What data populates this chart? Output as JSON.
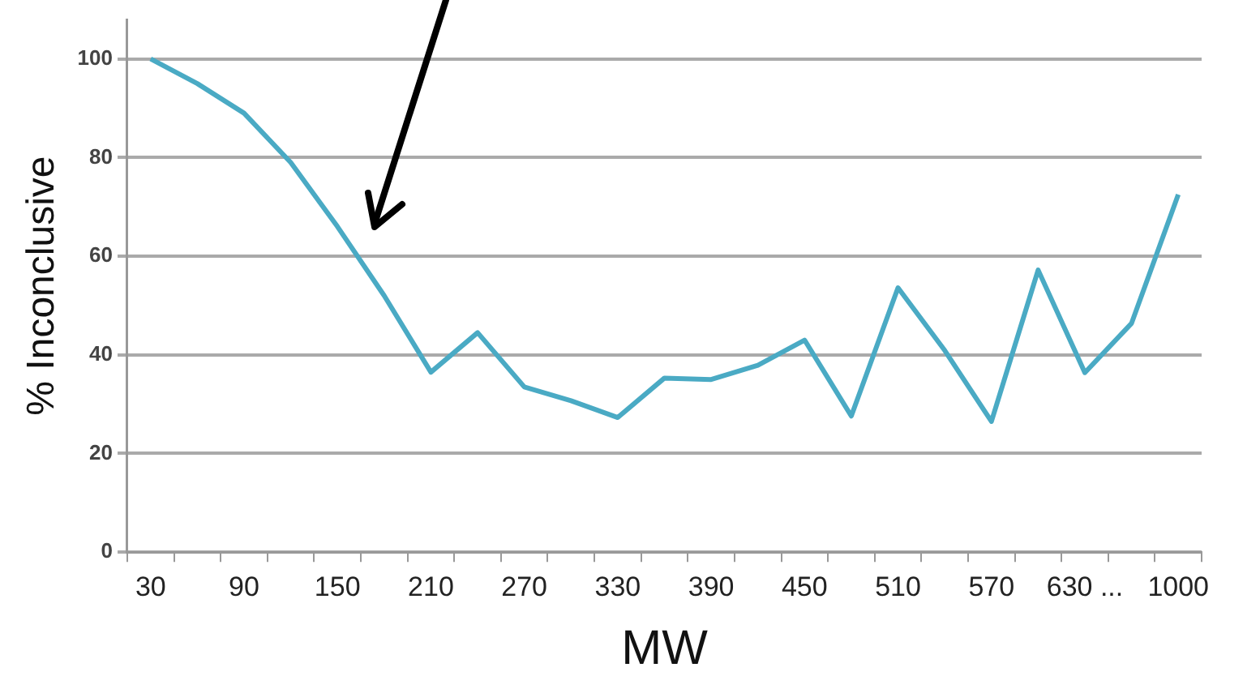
{
  "chart_data": {
    "type": "line",
    "xlabel": "MW",
    "ylabel": "% Inconclusive",
    "categories": [
      "30",
      null,
      "90",
      null,
      "150",
      null,
      "210",
      null,
      "270",
      null,
      "330",
      null,
      "390",
      null,
      "450",
      null,
      "510",
      null,
      "570",
      null,
      "630 ...",
      null,
      "1000"
    ],
    "values": [
      100,
      95,
      89,
      79,
      66,
      52,
      36.5,
      44.5,
      33.5,
      30.7,
      27.3,
      35.3,
      35,
      37.9,
      43,
      27.6,
      53.6,
      40.9,
      26.5,
      57.2,
      36.4,
      46.4,
      72.5
    ],
    "color": "#4aaac4",
    "marker": "none",
    "ylim": [
      0,
      108
    ],
    "yticks": [
      0,
      20,
      40,
      60,
      80,
      100
    ],
    "grid": "y"
  }
}
